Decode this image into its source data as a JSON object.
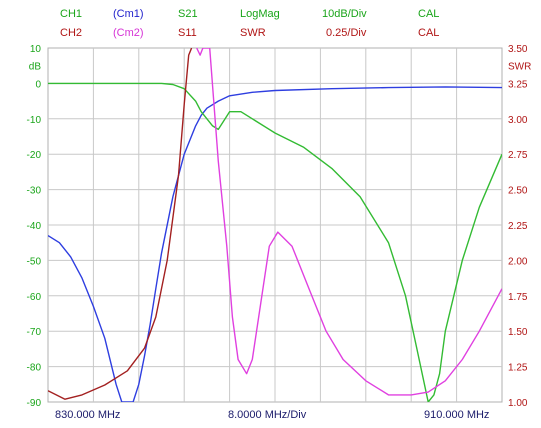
{
  "header": {
    "row1": [
      {
        "text": "CH1",
        "color": "#1aa51a"
      },
      {
        "text": "(Cm1)",
        "color": "#2222cc"
      },
      {
        "text": "S21",
        "color": "#1aa51a"
      },
      {
        "text": "LogMag",
        "color": "#1aa51a"
      },
      {
        "text": "10dB/Div",
        "color": "#1aa51a"
      },
      {
        "text": "CAL",
        "color": "#1aa51a"
      }
    ],
    "row2": [
      {
        "text": "CH2",
        "color": "#b01515"
      },
      {
        "text": "(Cm2)",
        "color": "#d633d6"
      },
      {
        "text": "S11",
        "color": "#b01515"
      },
      {
        "text": "SWR",
        "color": "#b01515"
      },
      {
        "text": "0.25/Div",
        "color": "#b01515"
      },
      {
        "text": "CAL",
        "color": "#b01515"
      }
    ]
  },
  "footer": {
    "start": "830.000 MHz",
    "div": "8.0000 MHz/Div",
    "stop": "910.000 MHz"
  },
  "colors": {
    "ch1": "#1aa51a",
    "ch2": "#b01515",
    "trace_blue": "#2e3ee0",
    "trace_green": "#33bb33",
    "trace_red": "#a32020",
    "trace_magenta": "#e040e0",
    "grid": "#c8c8c8"
  },
  "chart_data": {
    "type": "line",
    "x_range_mhz": [
      830,
      910
    ],
    "left_axis": {
      "unit": "dB",
      "range": [
        -90,
        10
      ],
      "ticks": [
        "10",
        "0",
        "-10",
        "-20",
        "-30",
        "-40",
        "-50",
        "-60",
        "-70",
        "-80",
        "-90"
      ]
    },
    "right_axis": {
      "unit": "SWR",
      "range": [
        1.0,
        3.5
      ],
      "ticks": [
        "3.50",
        "3.25",
        "3.00",
        "2.75",
        "2.50",
        "2.25",
        "2.00",
        "1.75",
        "1.50",
        "1.25",
        "1.00"
      ]
    },
    "series": [
      {
        "name": "(Cm1)",
        "axis": "left",
        "color": "#2e3ee0",
        "x": [
          830,
          832,
          834,
          836,
          838,
          840,
          842,
          843,
          844,
          845,
          846,
          847,
          848,
          849,
          850,
          852,
          854,
          856,
          857,
          858,
          860,
          862,
          866,
          870,
          880,
          890,
          900,
          910
        ],
        "y": [
          -43,
          -45,
          -49,
          -55,
          -63,
          -72,
          -85,
          -90,
          -90,
          -90,
          -85,
          -77,
          -68,
          -58,
          -48,
          -32,
          -20,
          -12,
          -9,
          -7,
          -5,
          -3.5,
          -2.5,
          -2,
          -1.5,
          -1.2,
          -1,
          -1.2
        ]
      },
      {
        "name": "(Cm2)",
        "axis": "left",
        "color": "#33bb33",
        "x": [
          830,
          840,
          850,
          852,
          854,
          856,
          857,
          858,
          859,
          860,
          862,
          864,
          866,
          870,
          875,
          880,
          885,
          890,
          893,
          895,
          897,
          898,
          899,
          900,
          903,
          906,
          910
        ],
        "y": [
          0,
          0,
          0,
          -0.3,
          -1.5,
          -5,
          -8,
          -10,
          -12,
          -13,
          -8,
          -8,
          -10,
          -14,
          -18,
          -24,
          -32,
          -45,
          -60,
          -75,
          -90,
          -88,
          -82,
          -70,
          -50,
          -35,
          -20
        ]
      },
      {
        "name": "S11",
        "axis": "right",
        "color": "#a32020",
        "x": [
          830,
          833,
          836,
          840,
          844,
          847,
          849,
          851,
          853,
          854,
          854.8,
          855.3
        ],
        "y": [
          1.08,
          1.02,
          1.05,
          1.12,
          1.22,
          1.38,
          1.6,
          2.0,
          2.6,
          3.1,
          3.45,
          3.5
        ]
      },
      {
        "name": "SWR",
        "axis": "right",
        "color": "#e040e0",
        "x": [
          856.2,
          856.8,
          857.3,
          858.5,
          860,
          861.5,
          862.5,
          863.5,
          865,
          866,
          867.5,
          869,
          870.5,
          873,
          876,
          879,
          882,
          886,
          888,
          890,
          892,
          894,
          897,
          900,
          903,
          906,
          910
        ],
        "y": [
          3.5,
          3.45,
          3.5,
          3.5,
          2.7,
          2.1,
          1.6,
          1.3,
          1.2,
          1.3,
          1.7,
          2.1,
          2.2,
          2.1,
          1.8,
          1.5,
          1.3,
          1.15,
          1.1,
          1.05,
          1.05,
          1.05,
          1.07,
          1.15,
          1.3,
          1.5,
          1.8
        ]
      }
    ]
  }
}
